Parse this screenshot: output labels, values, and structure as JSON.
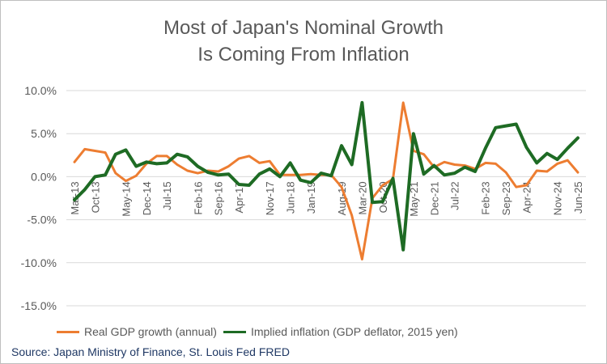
{
  "chart_data": {
    "type": "line",
    "title_line1": "Most of Japan's Nominal Growth",
    "title_line2": "Is Coming From Inflation",
    "xlabel": "",
    "ylabel": "",
    "ylim": [
      -15,
      10
    ],
    "yticks": [
      "10.0%",
      "5.0%",
      "0.0%",
      "-5.0%",
      "-10.0%",
      "-15.0%"
    ],
    "ytick_values": [
      10,
      5,
      0,
      -5,
      -10,
      -15
    ],
    "grid": true,
    "legend_position": "bottom",
    "x": [
      "Mar-13",
      "Jun-13",
      "Sep-13",
      "Dec-13",
      "Mar-14",
      "Jun-14",
      "Sep-14",
      "Dec-14",
      "Mar-15",
      "Jun-15",
      "Sep-15",
      "Dec-15",
      "Mar-16",
      "Jun-16",
      "Sep-16",
      "Dec-16",
      "Mar-17",
      "Jun-17",
      "Sep-17",
      "Dec-17",
      "Mar-18",
      "Jun-18",
      "Sep-18",
      "Dec-18",
      "Mar-19",
      "Jun-19",
      "Sep-19",
      "Dec-19",
      "Mar-20",
      "Jun-20",
      "Sep-20",
      "Dec-20",
      "Mar-21",
      "Jun-21",
      "Sep-21",
      "Dec-21",
      "Mar-22",
      "Jun-22",
      "Sep-22",
      "Dec-22",
      "Mar-23",
      "Jun-23",
      "Sep-23",
      "Dec-23",
      "Mar-24",
      "Jun-24",
      "Sep-24",
      "Dec-24",
      "Mar-25",
      "Jun-25"
    ],
    "x_tick_labels": [
      "Mar-13",
      "Oct-13",
      "May-14",
      "Dec-14",
      "Jul-15",
      "Feb-16",
      "Sep-16",
      "Apr-17",
      "Nov-17",
      "Jun-18",
      "Jan-19",
      "Aug-19",
      "Mar-20",
      "Oct-20",
      "May-21",
      "Dec-21",
      "Jul-22",
      "Feb-23",
      "Sep-23",
      "Apr-24",
      "Nov-24",
      "Jun-25"
    ],
    "series": [
      {
        "name": "Real GDP growth (annual)",
        "color": "#ed7d31",
        "values": [
          1.7,
          3.2,
          3.0,
          2.8,
          0.4,
          -0.5,
          0.1,
          1.5,
          2.4,
          2.4,
          1.4,
          0.7,
          0.4,
          0.7,
          0.6,
          1.2,
          2.1,
          2.4,
          1.6,
          1.8,
          0.2,
          0.2,
          0.2,
          0.3,
          0.2,
          0.2,
          -1.2,
          -4.5,
          -9.6,
          -2.5,
          -1.0,
          -0.3,
          8.6,
          3.0,
          2.6,
          1.1,
          1.7,
          1.4,
          1.3,
          0.9,
          1.6,
          1.5,
          0.5,
          -1.2,
          -1.0,
          0.7,
          0.6,
          1.5,
          1.9,
          0.5
        ]
      },
      {
        "name": "Implied inflation (GDP deflator, 2015 yen)",
        "color": "#1e6b24",
        "values": [
          -2.7,
          -1.5,
          0.0,
          0.2,
          2.6,
          3.1,
          1.2,
          1.7,
          1.5,
          1.6,
          2.6,
          2.3,
          1.2,
          0.5,
          0.2,
          0.3,
          -0.9,
          -1.0,
          0.3,
          0.9,
          0.0,
          1.6,
          -0.4,
          -0.7,
          0.4,
          0.1,
          3.6,
          1.4,
          8.6,
          -3.0,
          -2.9,
          -0.2,
          -8.5,
          5.0,
          0.3,
          1.3,
          0.2,
          0.4,
          1.1,
          0.6,
          3.3,
          5.7,
          5.9,
          6.1,
          3.4,
          1.6,
          2.7,
          2.0,
          3.3,
          4.5
        ]
      }
    ]
  },
  "footer": {
    "source": "Source: Japan Ministry of Finance, St. Louis Fed FRED"
  }
}
